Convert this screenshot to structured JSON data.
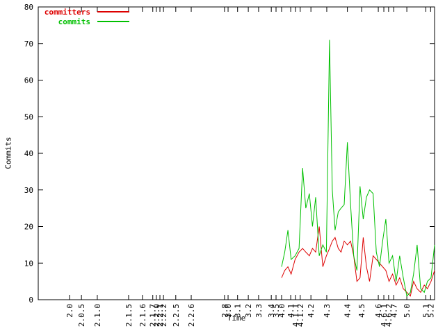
{
  "chart_data": {
    "type": "line",
    "title": "",
    "xlabel": "Time",
    "ylabel": "Commits",
    "ylim": [
      0,
      80
    ],
    "ytick_step": 10,
    "grid": false,
    "legend_position": "top-left-inside",
    "x_ticks": [
      {
        "label": "2.0",
        "pos": 0.079
      },
      {
        "label": "2.0.5",
        "pos": 0.109
      },
      {
        "label": "2.1.0",
        "pos": 0.149
      },
      {
        "label": "2.1.5",
        "pos": 0.228
      },
      {
        "label": "2.1.6",
        "pos": 0.263
      },
      {
        "label": "2.1.7",
        "pos": 0.289
      },
      {
        "label": "2.2.0",
        "pos": 0.298
      },
      {
        "label": "2.2.1",
        "pos": 0.307
      },
      {
        "label": "2.2.2",
        "pos": 0.316
      },
      {
        "label": "2.2.5",
        "pos": 0.347
      },
      {
        "label": "2.2.6",
        "pos": 0.386
      },
      {
        "label": "2.8",
        "pos": 0.47
      },
      {
        "label": "3.0",
        "pos": 0.479
      },
      {
        "label": "3.1",
        "pos": 0.503
      },
      {
        "label": "3.2",
        "pos": 0.53
      },
      {
        "label": "3.3",
        "pos": 0.556
      },
      {
        "label": "3.4",
        "pos": 0.588
      },
      {
        "label": "3.5",
        "pos": 0.6
      },
      {
        "label": "4.0",
        "pos": 0.614
      },
      {
        "label": "4.1",
        "pos": 0.637
      },
      {
        "label": "4.1.1",
        "pos": 0.649
      },
      {
        "label": "4.1.2",
        "pos": 0.661
      },
      {
        "label": "4.2",
        "pos": 0.688
      },
      {
        "label": "4.3",
        "pos": 0.728
      },
      {
        "label": "4.4",
        "pos": 0.78
      },
      {
        "label": "4.5",
        "pos": 0.816
      },
      {
        "label": "4.6",
        "pos": 0.858
      },
      {
        "label": "4.6.1",
        "pos": 0.872
      },
      {
        "label": "4.6.2",
        "pos": 0.884
      },
      {
        "label": "4.7",
        "pos": 0.897
      },
      {
        "label": "5.0",
        "pos": 0.93
      },
      {
        "label": "5.1",
        "pos": 0.978
      },
      {
        "label": "5.2",
        "pos": 0.99
      }
    ],
    "series": [
      {
        "name": "committers",
        "color": "#dd0000",
        "points": [
          [
            0.614,
            6
          ],
          [
            0.622,
            8
          ],
          [
            0.63,
            9
          ],
          [
            0.638,
            7
          ],
          [
            0.648,
            11
          ],
          [
            0.658,
            13
          ],
          [
            0.667,
            14
          ],
          [
            0.675,
            13
          ],
          [
            0.684,
            12
          ],
          [
            0.692,
            14
          ],
          [
            0.7,
            13
          ],
          [
            0.709,
            20
          ],
          [
            0.718,
            9
          ],
          [
            0.727,
            12
          ],
          [
            0.735,
            14
          ],
          [
            0.742,
            16
          ],
          [
            0.749,
            17
          ],
          [
            0.757,
            14
          ],
          [
            0.764,
            13
          ],
          [
            0.772,
            16
          ],
          [
            0.78,
            15
          ],
          [
            0.788,
            16
          ],
          [
            0.796,
            12
          ],
          [
            0.804,
            5
          ],
          [
            0.812,
            6
          ],
          [
            0.82,
            17
          ],
          [
            0.828,
            9
          ],
          [
            0.836,
            5
          ],
          [
            0.845,
            12
          ],
          [
            0.853,
            11
          ],
          [
            0.861,
            10
          ],
          [
            0.869,
            9
          ],
          [
            0.877,
            8
          ],
          [
            0.885,
            5
          ],
          [
            0.894,
            7
          ],
          [
            0.903,
            4
          ],
          [
            0.912,
            6
          ],
          [
            0.921,
            3
          ],
          [
            0.93,
            2
          ],
          [
            0.939,
            1
          ],
          [
            0.947,
            5
          ],
          [
            0.956,
            3
          ],
          [
            0.965,
            2
          ],
          [
            0.974,
            4
          ],
          [
            0.982,
            3
          ],
          [
            0.991,
            5
          ],
          [
            1.0,
            8
          ]
        ]
      },
      {
        "name": "commits",
        "color": "#00c000",
        "points": [
          [
            0.614,
            9
          ],
          [
            0.622,
            13
          ],
          [
            0.63,
            19
          ],
          [
            0.638,
            11
          ],
          [
            0.648,
            12
          ],
          [
            0.658,
            14
          ],
          [
            0.667,
            36
          ],
          [
            0.675,
            25
          ],
          [
            0.684,
            29
          ],
          [
            0.692,
            20
          ],
          [
            0.7,
            28
          ],
          [
            0.709,
            12
          ],
          [
            0.718,
            15
          ],
          [
            0.727,
            13
          ],
          [
            0.735,
            71
          ],
          [
            0.742,
            30
          ],
          [
            0.749,
            19
          ],
          [
            0.757,
            24
          ],
          [
            0.764,
            25
          ],
          [
            0.772,
            26
          ],
          [
            0.78,
            43
          ],
          [
            0.788,
            26
          ],
          [
            0.796,
            12
          ],
          [
            0.804,
            8
          ],
          [
            0.812,
            31
          ],
          [
            0.82,
            22
          ],
          [
            0.828,
            28
          ],
          [
            0.836,
            30
          ],
          [
            0.845,
            29
          ],
          [
            0.853,
            13
          ],
          [
            0.861,
            9
          ],
          [
            0.869,
            16
          ],
          [
            0.877,
            22
          ],
          [
            0.885,
            10
          ],
          [
            0.894,
            12
          ],
          [
            0.903,
            5
          ],
          [
            0.912,
            12
          ],
          [
            0.921,
            6
          ],
          [
            0.93,
            1
          ],
          [
            0.939,
            2
          ],
          [
            0.947,
            7
          ],
          [
            0.956,
            15
          ],
          [
            0.965,
            3
          ],
          [
            0.974,
            2
          ],
          [
            0.982,
            5
          ],
          [
            0.991,
            6
          ],
          [
            1.0,
            15
          ]
        ]
      }
    ]
  },
  "legend": {
    "committers_label": "committers",
    "commits_label": "commits"
  }
}
